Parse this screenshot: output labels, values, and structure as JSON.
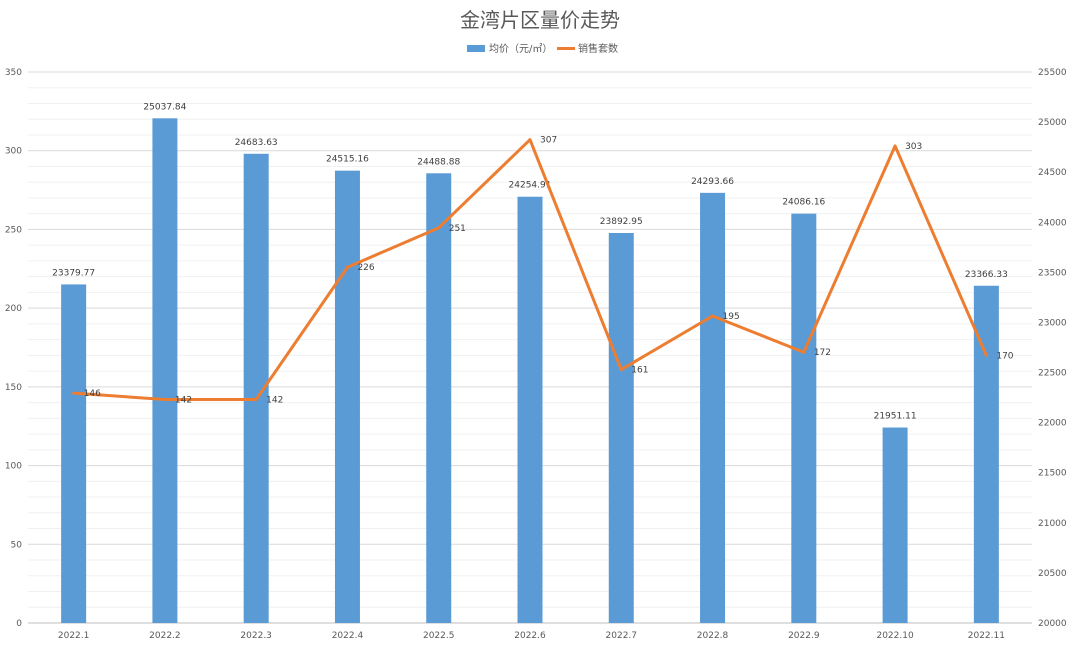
{
  "chart_data": {
    "type": "bar",
    "title": "金湾片区量价走势",
    "categories": [
      "2022.1",
      "2022.2",
      "2022.3",
      "2022.4",
      "2022.5",
      "2022.6",
      "2022.7",
      "2022.8",
      "2022.9",
      "2022.10",
      "2022.11"
    ],
    "series": [
      {
        "name": "均价（元/㎡）",
        "type": "bar",
        "axis": "right",
        "color": "#5b9bd5",
        "values": [
          23379.77,
          25037.84,
          24683.63,
          24515.16,
          24488.88,
          24254.91,
          23892.95,
          24293.66,
          24086.16,
          21951.11,
          23366.33
        ],
        "labels": [
          "23379.77",
          "25037.84",
          "24683.63",
          "24515.16",
          "24488.88",
          "24254.91",
          "23892.95",
          "24293.66",
          "24086.16",
          "21951.11",
          "23366.33"
        ]
      },
      {
        "name": "销售套数",
        "type": "line",
        "axis": "left",
        "color": "#ed7d31",
        "values": [
          146,
          142,
          142,
          226,
          251,
          307,
          161,
          195,
          172,
          303,
          170
        ],
        "labels": [
          "146",
          "142",
          "142",
          "226",
          "251",
          "307",
          "161",
          "195",
          "172",
          "303",
          "170"
        ]
      }
    ],
    "y_left": {
      "lim": [
        0,
        350
      ],
      "ticks": [
        "0",
        "50",
        "100",
        "150",
        "200",
        "250",
        "300",
        "350"
      ]
    },
    "y_right": {
      "lim": [
        20000,
        25500
      ],
      "ticks": [
        "20000",
        "20500",
        "21000",
        "21500",
        "22000",
        "22500",
        "23000",
        "23500",
        "24000",
        "24500",
        "25000",
        "25500"
      ]
    },
    "legend_position": "top-center",
    "grid": true
  }
}
